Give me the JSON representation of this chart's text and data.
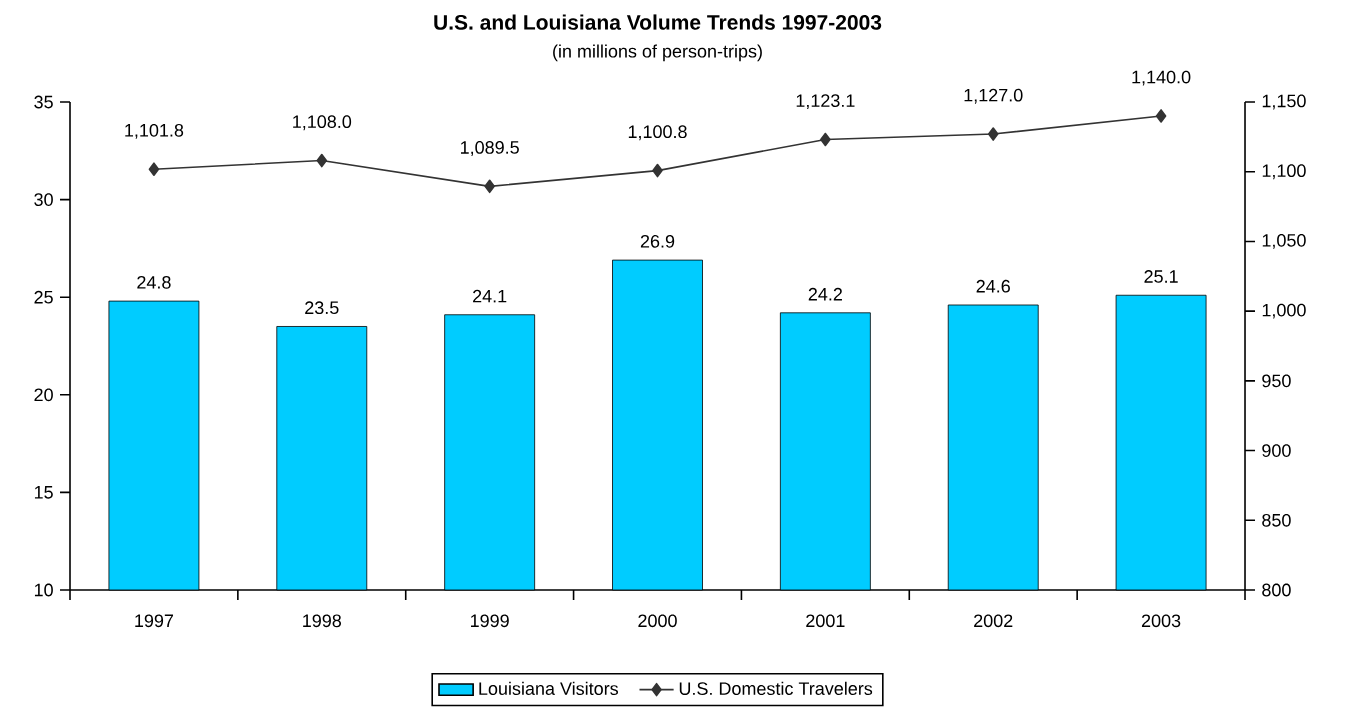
{
  "chart_data": {
    "type": "bar",
    "title": "U.S. and Louisiana Volume Trends 1997-2003",
    "subtitle": "(in millions of person-trips)",
    "categories": [
      "1997",
      "1998",
      "1999",
      "2000",
      "2001",
      "2002",
      "2003"
    ],
    "series": [
      {
        "name": "Louisiana Visitors",
        "color": "#00ccff",
        "values": [
          24.8,
          23.5,
          24.1,
          26.9,
          24.2,
          24.6,
          25.1
        ],
        "value_labels": [
          "24.8",
          "23.5",
          "24.1",
          "26.9",
          "24.2",
          "24.6",
          "25.1"
        ]
      },
      {
        "name": "U.S. Domestic Travelers",
        "type": "line",
        "axis": "y2",
        "color": "#333333",
        "marker": "diamond",
        "line_style": "solid",
        "values": [
          1101.8,
          1108.0,
          1089.5,
          1100.8,
          1123.1,
          1127.0,
          1140.0
        ],
        "value_labels": [
          "1,101.8",
          "1,108.0",
          "1,089.5",
          "1,100.8",
          "1,123.1",
          "1,127.0",
          "1,140.0"
        ]
      }
    ],
    "ylim": [
      10,
      35
    ],
    "yticks": [
      10,
      15,
      20,
      25,
      30,
      35
    ],
    "y2lim": [
      800,
      1150
    ],
    "y2ticks": [
      {
        "value": 800,
        "label": "800"
      },
      {
        "value": 850,
        "label": "850"
      },
      {
        "value": 900,
        "label": "900"
      },
      {
        "value": 950,
        "label": "950"
      },
      {
        "value": 1000,
        "label": "1,000"
      },
      {
        "value": 1050,
        "label": "1,050"
      },
      {
        "value": 1100,
        "label": "1,100"
      },
      {
        "value": 1150,
        "label": "1,150"
      }
    ],
    "legend": "bottom",
    "grid": false
  }
}
